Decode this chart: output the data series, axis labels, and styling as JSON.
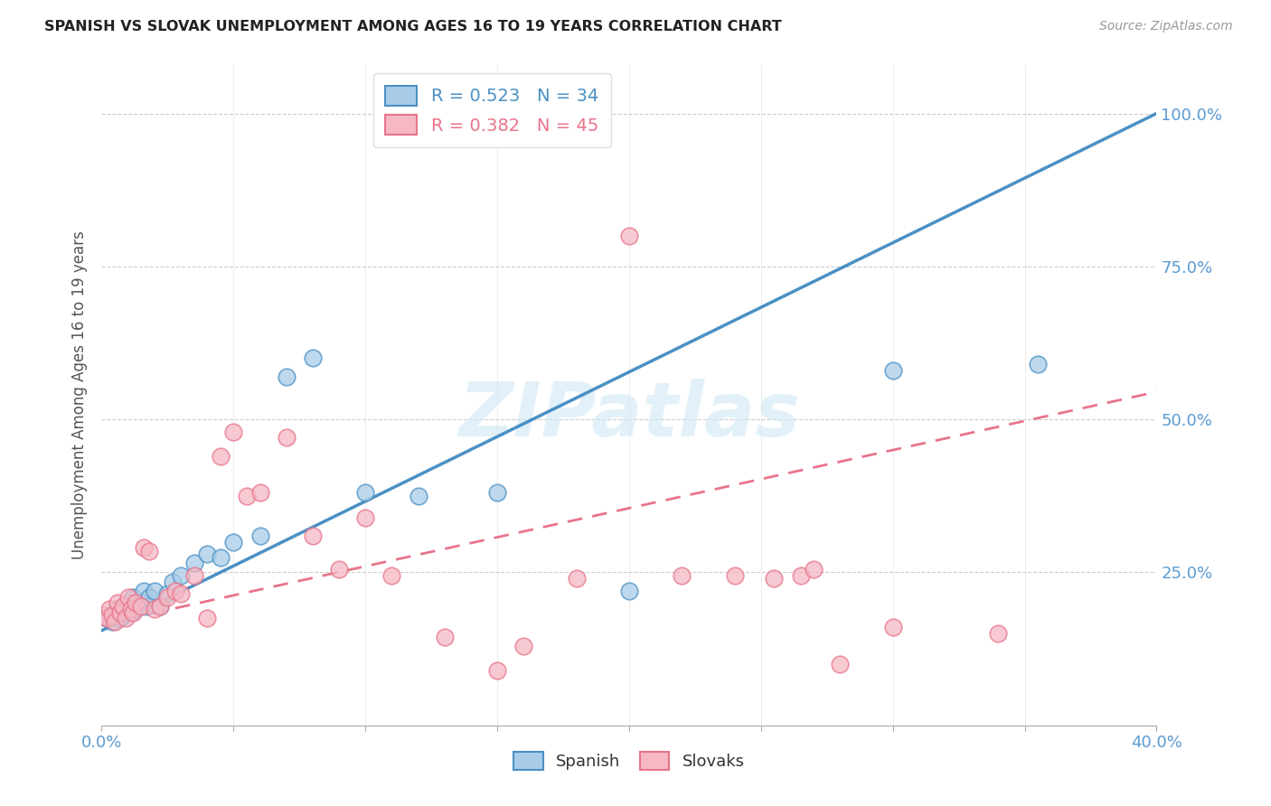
{
  "title": "SPANISH VS SLOVAK UNEMPLOYMENT AMONG AGES 16 TO 19 YEARS CORRELATION CHART",
  "source": "Source: ZipAtlas.com",
  "ylabel": "Unemployment Among Ages 16 to 19 years",
  "ytick_labels": [
    "100.0%",
    "75.0%",
    "50.0%",
    "25.0%"
  ],
  "ytick_values": [
    1.0,
    0.75,
    0.5,
    0.25
  ],
  "legend_blue_r": "R = 0.523",
  "legend_blue_n": "N = 34",
  "legend_pink_r": "R = 0.382",
  "legend_pink_n": "N = 45",
  "legend_label_blue": "Spanish",
  "legend_label_pink": "Slovaks",
  "blue_color": "#a8cce8",
  "pink_color": "#f5b8c4",
  "blue_line_color": "#4a90c4",
  "pink_line_color": "#e8748a",
  "watermark": "ZIPatlas",
  "blue_scatter_x": [
    0.002,
    0.003,
    0.004,
    0.005,
    0.006,
    0.007,
    0.008,
    0.009,
    0.01,
    0.011,
    0.012,
    0.013,
    0.015,
    0.016,
    0.017,
    0.018,
    0.02,
    0.022,
    0.025,
    0.027,
    0.03,
    0.035,
    0.04,
    0.045,
    0.05,
    0.06,
    0.07,
    0.08,
    0.1,
    0.12,
    0.15,
    0.2,
    0.3,
    0.355
  ],
  "blue_scatter_y": [
    0.175,
    0.18,
    0.17,
    0.185,
    0.19,
    0.175,
    0.18,
    0.195,
    0.2,
    0.185,
    0.21,
    0.19,
    0.2,
    0.22,
    0.195,
    0.21,
    0.22,
    0.195,
    0.215,
    0.235,
    0.245,
    0.265,
    0.28,
    0.275,
    0.3,
    0.31,
    0.57,
    0.6,
    0.38,
    0.375,
    0.38,
    0.22,
    0.58,
    0.59
  ],
  "pink_scatter_x": [
    0.001,
    0.002,
    0.003,
    0.004,
    0.005,
    0.006,
    0.007,
    0.008,
    0.009,
    0.01,
    0.011,
    0.012,
    0.013,
    0.015,
    0.016,
    0.018,
    0.02,
    0.022,
    0.025,
    0.028,
    0.03,
    0.035,
    0.04,
    0.045,
    0.05,
    0.055,
    0.06,
    0.07,
    0.08,
    0.09,
    0.1,
    0.11,
    0.13,
    0.15,
    0.16,
    0.18,
    0.2,
    0.22,
    0.24,
    0.255,
    0.265,
    0.27,
    0.28,
    0.3,
    0.34
  ],
  "pink_scatter_y": [
    0.18,
    0.175,
    0.19,
    0.18,
    0.17,
    0.2,
    0.185,
    0.195,
    0.175,
    0.21,
    0.19,
    0.185,
    0.2,
    0.195,
    0.29,
    0.285,
    0.19,
    0.195,
    0.21,
    0.22,
    0.215,
    0.245,
    0.175,
    0.44,
    0.48,
    0.375,
    0.38,
    0.47,
    0.31,
    0.255,
    0.34,
    0.245,
    0.145,
    0.09,
    0.13,
    0.24,
    0.8,
    0.245,
    0.245,
    0.24,
    0.245,
    0.255,
    0.1,
    0.16,
    0.15
  ],
  "blue_line_x0": 0.0,
  "blue_line_y0": 0.155,
  "blue_line_x1": 0.4,
  "blue_line_y1": 1.0,
  "pink_line_x0": 0.0,
  "pink_line_y0": 0.165,
  "pink_line_x1": 0.4,
  "pink_line_y1": 0.545,
  "xmin": 0.0,
  "xmax": 0.4,
  "ymin": 0.0,
  "ymax": 1.08
}
